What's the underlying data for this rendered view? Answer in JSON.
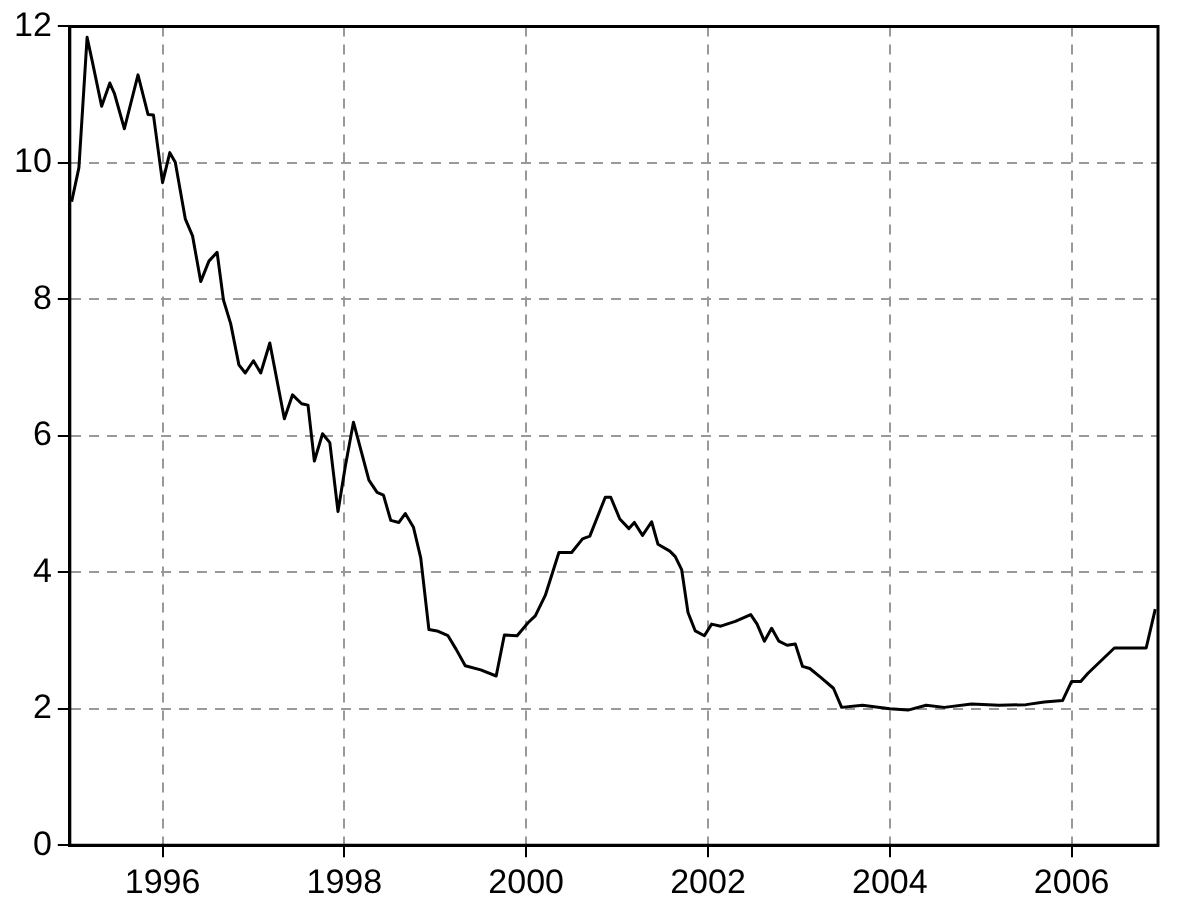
{
  "chart_data": {
    "type": "line",
    "marker": "none",
    "line_style": "solid",
    "grid": true,
    "xlim": [
      1994.98,
      2006.95
    ],
    "xticks": [
      1996,
      1998,
      2000,
      2002,
      2004,
      2006
    ],
    "ylim": [
      0,
      12
    ],
    "yticks": [
      0,
      2,
      4,
      6,
      8,
      10,
      12
    ],
    "series": [
      {
        "color": "#000000",
        "x": [
          1995.0,
          1995.08,
          1995.17,
          1995.23,
          1995.33,
          1995.42,
          1995.47,
          1995.58,
          1995.73,
          1995.84,
          1995.9,
          1996.0,
          1996.08,
          1996.14,
          1996.25,
          1996.33,
          1996.42,
          1996.51,
          1996.6,
          1996.67,
          1996.75,
          1996.84,
          1996.91,
          1997.0,
          1997.08,
          1997.18,
          1997.34,
          1997.43,
          1997.53,
          1997.6,
          1997.67,
          1997.76,
          1997.84,
          1997.93,
          1998.01,
          1998.1,
          1998.27,
          1998.36,
          1998.43,
          1998.51,
          1998.6,
          1998.67,
          1998.76,
          1998.84,
          1998.93,
          1999.02,
          1999.14,
          1999.23,
          1999.33,
          1999.5,
          1999.67,
          1999.76,
          1999.9,
          2000.02,
          2000.1,
          2000.21,
          2000.36,
          2000.5,
          2000.62,
          2000.7,
          2000.87,
          2000.93,
          2001.03,
          2001.13,
          2001.19,
          2001.28,
          2001.38,
          2001.45,
          2001.58,
          2001.64,
          2001.71,
          2001.78,
          2001.86,
          2001.96,
          2002.04,
          2002.14,
          2002.3,
          2002.47,
          2002.54,
          2002.62,
          2002.7,
          2002.78,
          2002.87,
          2002.96,
          2003.04,
          2003.12,
          2003.23,
          2003.38,
          2003.47,
          2003.7,
          2004.0,
          2004.2,
          2004.4,
          2004.6,
          2004.9,
          2005.2,
          2005.5,
          2005.7,
          2005.9,
          2006.0,
          2006.1,
          2006.18,
          2006.47,
          2006.82,
          2006.92
        ],
        "values": [
          9.43,
          9.93,
          11.84,
          11.47,
          10.83,
          11.17,
          11.02,
          10.5,
          11.29,
          10.71,
          10.7,
          9.71,
          10.15,
          10.01,
          9.18,
          8.93,
          8.26,
          8.56,
          8.69,
          7.99,
          7.64,
          7.04,
          6.92,
          7.1,
          6.92,
          7.36,
          6.25,
          6.6,
          6.47,
          6.45,
          5.63,
          6.03,
          5.9,
          4.89,
          5.55,
          6.2,
          5.35,
          5.17,
          5.13,
          4.76,
          4.73,
          4.86,
          4.66,
          4.21,
          3.16,
          3.14,
          3.07,
          2.87,
          2.63,
          2.57,
          2.48,
          3.08,
          3.07,
          3.26,
          3.36,
          3.66,
          4.29,
          4.29,
          4.49,
          4.53,
          5.1,
          5.1,
          4.78,
          4.64,
          4.73,
          4.54,
          4.74,
          4.41,
          4.31,
          4.23,
          4.04,
          3.41,
          3.14,
          3.07,
          3.24,
          3.21,
          3.28,
          3.38,
          3.24,
          2.99,
          3.18,
          2.99,
          2.93,
          2.95,
          2.62,
          2.59,
          2.47,
          2.3,
          2.02,
          2.05,
          2.0,
          1.98,
          2.05,
          2.02,
          2.07,
          2.05,
          2.06,
          2.1,
          2.12,
          2.4,
          2.4,
          2.52,
          2.89,
          2.89,
          3.46
        ]
      }
    ]
  }
}
